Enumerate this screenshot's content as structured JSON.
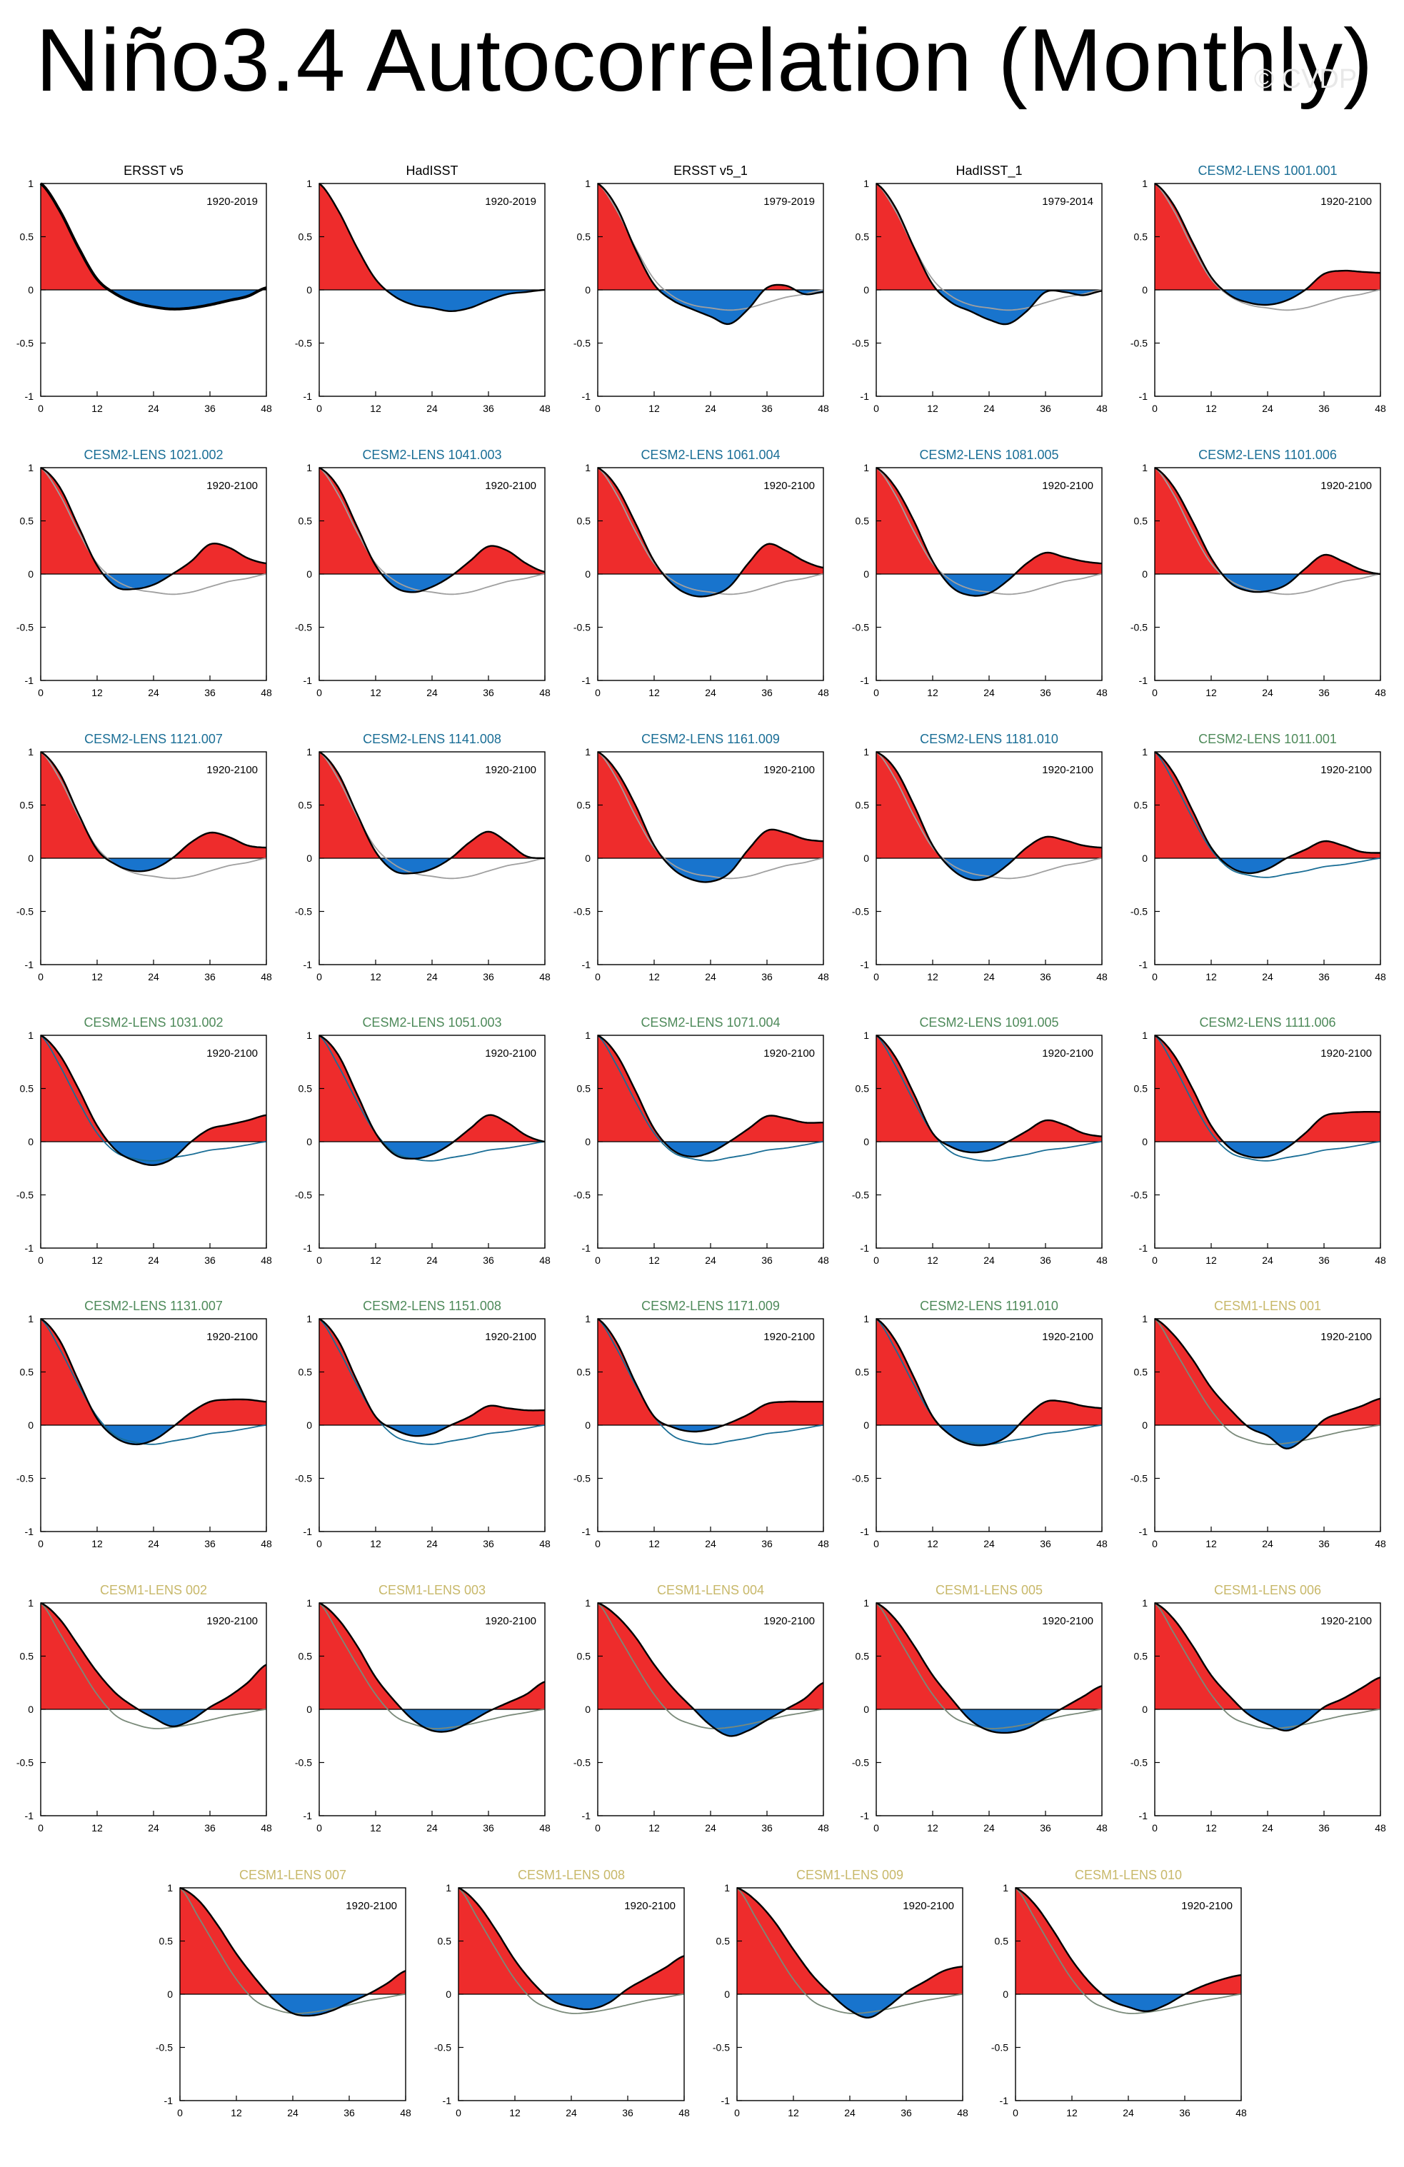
{
  "title": "Niño3.4 Autocorrelation (Monthly)",
  "watermark": "© CVDP",
  "colors": {
    "positive": "#EE2C2C",
    "negative": "#1874CD",
    "curve": "#000000",
    "obs_label": "#000000",
    "cesm2_smbb": "#1A6E96",
    "cesm2_cmip6": "#4E8A5A",
    "cesm1": "#C8B86A",
    "grey_ref": "#A0A0A0"
  },
  "chart_data": {
    "type": "area",
    "x_ticks": [
      "0",
      "12",
      "24",
      "36",
      "48"
    ],
    "y_ticks": [
      "1",
      "0.5",
      "0",
      "-0.5",
      "-1"
    ],
    "xlim": [
      0,
      48
    ],
    "ylim": [
      -1,
      1
    ],
    "xlabel": "",
    "ylabel": "",
    "panels": [
      {
        "name": "ERSST v5",
        "period": "1920-2019",
        "group": "obs",
        "ref": null,
        "thick": true,
        "values": [
          1,
          0.75,
          0.4,
          0.1,
          -0.04,
          -0.12,
          -0.16,
          -0.18,
          -0.17,
          -0.14,
          -0.1,
          -0.06,
          0.02
        ]
      },
      {
        "name": "HadISST",
        "period": "1920-2019",
        "group": "obs",
        "ref": null,
        "values": [
          1,
          0.75,
          0.4,
          0.1,
          -0.06,
          -0.14,
          -0.17,
          -0.2,
          -0.17,
          -0.1,
          -0.04,
          -0.02,
          0
        ]
      },
      {
        "name": "ERSST v5_1",
        "period": "1979-2019",
        "group": "obs",
        "ref": "obs",
        "values": [
          1,
          0.78,
          0.38,
          0.05,
          -0.1,
          -0.18,
          -0.25,
          -0.32,
          -0.18,
          0.02,
          0.04,
          -0.04,
          -0.02
        ]
      },
      {
        "name": "HadISST_1",
        "period": "1979-2014",
        "group": "obs",
        "ref": "obs",
        "values": [
          1,
          0.78,
          0.4,
          0.05,
          -0.12,
          -0.2,
          -0.28,
          -0.32,
          -0.2,
          -0.02,
          -0.02,
          -0.05,
          -0.01
        ]
      },
      {
        "name": "CESM2-LENS 1001.001",
        "period": "1920-2100",
        "group": "cesm2_smbb",
        "ref": "obs",
        "values": [
          1,
          0.8,
          0.45,
          0.12,
          -0.05,
          -0.12,
          -0.14,
          -0.1,
          0,
          0.15,
          0.18,
          0.17,
          0.16
        ]
      },
      {
        "name": "CESM2-LENS 1021.002",
        "period": "1920-2100",
        "group": "cesm2_smbb",
        "ref": "obs",
        "values": [
          1,
          0.82,
          0.45,
          0.08,
          -0.12,
          -0.14,
          -0.1,
          0,
          0.12,
          0.28,
          0.25,
          0.15,
          0.1
        ]
      },
      {
        "name": "CESM2-LENS 1041.003",
        "period": "1920-2100",
        "group": "cesm2_smbb",
        "ref": "obs",
        "values": [
          1,
          0.82,
          0.45,
          0.08,
          -0.12,
          -0.17,
          -0.12,
          -0.02,
          0.12,
          0.26,
          0.22,
          0.1,
          0.02
        ]
      },
      {
        "name": "CESM2-LENS 1061.004",
        "period": "1920-2100",
        "group": "cesm2_smbb",
        "ref": "obs",
        "values": [
          1,
          0.82,
          0.48,
          0.12,
          -0.1,
          -0.2,
          -0.2,
          -0.12,
          0.1,
          0.28,
          0.22,
          0.12,
          0.06
        ]
      },
      {
        "name": "CESM2-LENS 1081.005",
        "period": "1920-2100",
        "group": "cesm2_smbb",
        "ref": "obs",
        "values": [
          1,
          0.82,
          0.5,
          0.12,
          -0.12,
          -0.2,
          -0.18,
          -0.06,
          0.1,
          0.2,
          0.16,
          0.12,
          0.1
        ]
      },
      {
        "name": "CESM2-LENS 1101.006",
        "period": "1920-2100",
        "group": "cesm2_smbb",
        "ref": "obs",
        "values": [
          1,
          0.82,
          0.5,
          0.15,
          -0.08,
          -0.16,
          -0.16,
          -0.1,
          0.05,
          0.18,
          0.12,
          0.04,
          0
        ]
      },
      {
        "name": "CESM2-LENS 1121.007",
        "period": "1920-2100",
        "group": "cesm2_smbb",
        "ref": "obs",
        "values": [
          1,
          0.8,
          0.42,
          0.08,
          -0.06,
          -0.12,
          -0.1,
          0,
          0.15,
          0.24,
          0.2,
          0.12,
          0.1
        ]
      },
      {
        "name": "CESM2-LENS 1141.008",
        "period": "1920-2100",
        "group": "cesm2_smbb",
        "ref": "obs",
        "values": [
          1,
          0.8,
          0.42,
          0.06,
          -0.12,
          -0.14,
          -0.1,
          0,
          0.15,
          0.25,
          0.15,
          0.02,
          0
        ]
      },
      {
        "name": "CESM2-LENS 1161.009",
        "period": "1920-2100",
        "group": "cesm2_smbb",
        "ref": "obs",
        "values": [
          1,
          0.82,
          0.5,
          0.12,
          -0.1,
          -0.2,
          -0.22,
          -0.14,
          0.08,
          0.26,
          0.24,
          0.18,
          0.16
        ]
      },
      {
        "name": "CESM2-LENS 1181.010",
        "period": "1920-2100",
        "group": "cesm2_smbb",
        "ref": "obs",
        "values": [
          1,
          0.84,
          0.5,
          0.12,
          -0.1,
          -0.2,
          -0.18,
          -0.06,
          0.1,
          0.2,
          0.17,
          0.12,
          0.1
        ]
      },
      {
        "name": "CESM2-LENS 1011.001",
        "period": "1920-2100",
        "group": "cesm2_cmip6",
        "ref": "cesm2",
        "values": [
          1,
          0.8,
          0.45,
          0.1,
          -0.08,
          -0.14,
          -0.1,
          0,
          0.08,
          0.16,
          0.12,
          0.06,
          0.05
        ]
      },
      {
        "name": "CESM2-LENS 1031.002",
        "period": "1920-2100",
        "group": "cesm2_cmip6",
        "ref": "cesm2",
        "values": [
          1,
          0.82,
          0.5,
          0.15,
          -0.08,
          -0.18,
          -0.22,
          -0.16,
          0,
          0.12,
          0.16,
          0.2,
          0.25
        ]
      },
      {
        "name": "CESM2-LENS 1051.003",
        "period": "1920-2100",
        "group": "cesm2_cmip6",
        "ref": "cesm2",
        "values": [
          1,
          0.82,
          0.45,
          0.08,
          -0.12,
          -0.16,
          -0.12,
          -0.02,
          0.12,
          0.25,
          0.18,
          0.06,
          0
        ]
      },
      {
        "name": "CESM2-LENS 1071.004",
        "period": "1920-2100",
        "group": "cesm2_cmip6",
        "ref": "cesm2",
        "values": [
          1,
          0.82,
          0.48,
          0.12,
          -0.08,
          -0.14,
          -0.1,
          0,
          0.12,
          0.24,
          0.22,
          0.18,
          0.18
        ]
      },
      {
        "name": "CESM2-LENS 1091.005",
        "period": "1920-2100",
        "group": "cesm2_cmip6",
        "ref": "cesm2",
        "values": [
          1,
          0.8,
          0.45,
          0.08,
          -0.05,
          -0.1,
          -0.08,
          0,
          0.1,
          0.2,
          0.16,
          0.08,
          0.05
        ]
      },
      {
        "name": "CESM2-LENS 1111.006",
        "period": "1920-2100",
        "group": "cesm2_cmip6",
        "ref": "cesm2",
        "values": [
          1,
          0.82,
          0.5,
          0.15,
          -0.06,
          -0.14,
          -0.14,
          -0.06,
          0.08,
          0.24,
          0.27,
          0.28,
          0.28
        ]
      },
      {
        "name": "CESM2-LENS 1131.007",
        "period": "1920-2100",
        "group": "cesm2_cmip6",
        "ref": "cesm2",
        "values": [
          1,
          0.8,
          0.42,
          0.06,
          -0.12,
          -0.18,
          -0.14,
          -0.02,
          0.12,
          0.22,
          0.24,
          0.24,
          0.22
        ]
      },
      {
        "name": "CESM2-LENS 1151.008",
        "period": "1920-2100",
        "group": "cesm2_cmip6",
        "ref": "cesm2",
        "values": [
          1,
          0.8,
          0.42,
          0.08,
          -0.04,
          -0.1,
          -0.08,
          0,
          0.08,
          0.18,
          0.16,
          0.14,
          0.14
        ]
      },
      {
        "name": "CESM2-LENS 1171.009",
        "period": "1920-2100",
        "group": "cesm2_cmip6",
        "ref": "cesm2",
        "values": [
          1,
          0.78,
          0.4,
          0.08,
          -0.02,
          -0.06,
          -0.04,
          0.02,
          0.1,
          0.2,
          0.22,
          0.22,
          0.22
        ]
      },
      {
        "name": "CESM2-LENS 1191.010",
        "period": "1920-2100",
        "group": "cesm2_cmip6",
        "ref": "cesm2",
        "values": [
          1,
          0.8,
          0.45,
          0.08,
          -0.1,
          -0.18,
          -0.18,
          -0.1,
          0.08,
          0.22,
          0.22,
          0.18,
          0.16
        ]
      },
      {
        "name": "CESM1-LENS 001",
        "period": "1920-2100",
        "group": "cesm1",
        "ref": "cesm1",
        "values": [
          1,
          0.85,
          0.62,
          0.35,
          0.15,
          -0.02,
          -0.1,
          -0.22,
          -0.12,
          0.05,
          0.12,
          0.18,
          0.25
        ]
      },
      {
        "name": "CESM1-LENS 002",
        "period": "1920-2100",
        "group": "cesm1",
        "ref": "cesm1",
        "values": [
          1,
          0.85,
          0.6,
          0.35,
          0.15,
          0.02,
          -0.08,
          -0.16,
          -0.1,
          0.02,
          0.12,
          0.25,
          0.42
        ]
      },
      {
        "name": "CESM1-LENS 003",
        "period": "1920-2100",
        "group": "cesm1",
        "ref": "cesm1",
        "values": [
          1,
          0.85,
          0.6,
          0.3,
          0.08,
          -0.1,
          -0.2,
          -0.2,
          -0.12,
          -0.02,
          0.06,
          0.14,
          0.26
        ]
      },
      {
        "name": "CESM1-LENS 004",
        "period": "1920-2100",
        "group": "cesm1",
        "ref": "cesm1",
        "values": [
          1,
          0.88,
          0.68,
          0.42,
          0.2,
          0.02,
          -0.15,
          -0.25,
          -0.2,
          -0.1,
          0,
          0.1,
          0.25
        ]
      },
      {
        "name": "CESM1-LENS 005",
        "period": "1920-2100",
        "group": "cesm1",
        "ref": "cesm1",
        "values": [
          1,
          0.85,
          0.6,
          0.32,
          0.1,
          -0.1,
          -0.2,
          -0.22,
          -0.18,
          -0.08,
          0.02,
          0.12,
          0.22
        ]
      },
      {
        "name": "CESM1-LENS 006",
        "period": "1920-2100",
        "group": "cesm1",
        "ref": "cesm1",
        "values": [
          1,
          0.85,
          0.6,
          0.32,
          0.12,
          -0.05,
          -0.14,
          -0.2,
          -0.12,
          0.02,
          0.1,
          0.2,
          0.3
        ]
      },
      {
        "name": "CESM1-LENS 007",
        "period": "1920-2100",
        "group": "cesm1",
        "ref": "cesm1",
        "values": [
          1,
          0.88,
          0.65,
          0.38,
          0.15,
          -0.05,
          -0.18,
          -0.2,
          -0.16,
          -0.08,
          0,
          0.1,
          0.22
        ]
      },
      {
        "name": "CESM1-LENS 008",
        "period": "1920-2100",
        "group": "cesm1",
        "ref": "cesm1",
        "values": [
          1,
          0.85,
          0.6,
          0.32,
          0.1,
          -0.06,
          -0.12,
          -0.14,
          -0.08,
          0.05,
          0.15,
          0.25,
          0.36
        ]
      },
      {
        "name": "CESM1-LENS 009",
        "period": "1920-2100",
        "group": "cesm1",
        "ref": "cesm1",
        "values": [
          1,
          0.88,
          0.68,
          0.42,
          0.18,
          0,
          -0.15,
          -0.22,
          -0.12,
          0.02,
          0.12,
          0.22,
          0.26
        ]
      },
      {
        "name": "CESM1-LENS 010",
        "period": "1920-2100",
        "group": "cesm1",
        "ref": "cesm1",
        "values": [
          1,
          0.85,
          0.6,
          0.32,
          0.1,
          -0.05,
          -0.12,
          -0.16,
          -0.1,
          0,
          0.08,
          0.14,
          0.18
        ]
      }
    ],
    "reference_curves": {
      "obs": [
        1,
        0.75,
        0.4,
        0.1,
        -0.06,
        -0.14,
        -0.17,
        -0.19,
        -0.17,
        -0.12,
        -0.07,
        -0.04,
        0
      ],
      "cesm2": [
        1,
        0.72,
        0.38,
        0.08,
        -0.1,
        -0.16,
        -0.18,
        -0.15,
        -0.12,
        -0.08,
        -0.06,
        -0.03,
        0
      ],
      "cesm1": [
        1,
        0.72,
        0.42,
        0.14,
        -0.06,
        -0.14,
        -0.18,
        -0.17,
        -0.14,
        -0.1,
        -0.06,
        -0.03,
        0
      ]
    }
  }
}
